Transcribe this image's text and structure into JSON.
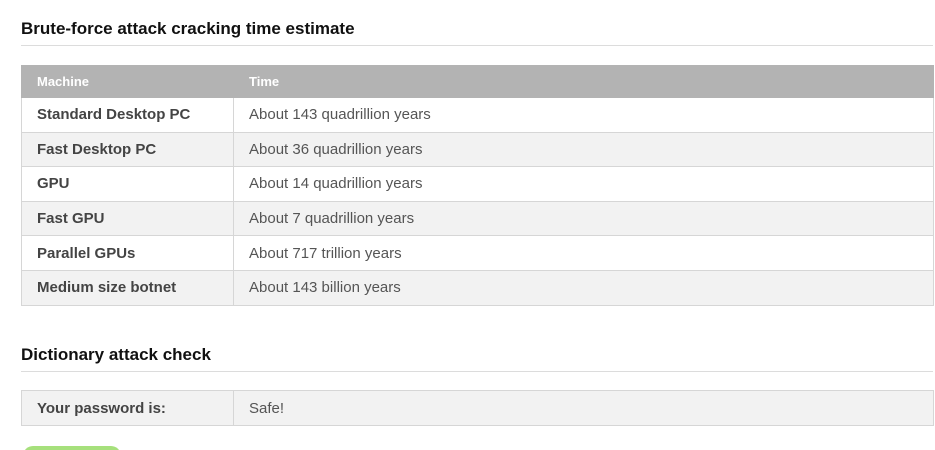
{
  "bruteforce": {
    "title": "Brute-force attack cracking time estimate",
    "headers": {
      "machine": "Machine",
      "time": "Time"
    },
    "rows": [
      {
        "machine": "Standard Desktop PC",
        "time": "About 143 quadrillion years"
      },
      {
        "machine": "Fast Desktop PC",
        "time": "About 36 quadrillion years"
      },
      {
        "machine": "GPU",
        "time": "About 14 quadrillion years"
      },
      {
        "machine": "Fast GPU",
        "time": "About 7 quadrillion years"
      },
      {
        "machine": "Parallel GPUs",
        "time": "About 717 trillion years"
      },
      {
        "machine": "Medium size botnet",
        "time": "About 143 billion years"
      }
    ]
  },
  "dictionary": {
    "title": "Dictionary attack check",
    "label": "Your password is:",
    "result": "Safe!"
  },
  "colors": {
    "header_bg": "#b3b3b3",
    "row_alt_bg": "#f2f2f2",
    "button_green": "#a6e07c"
  }
}
